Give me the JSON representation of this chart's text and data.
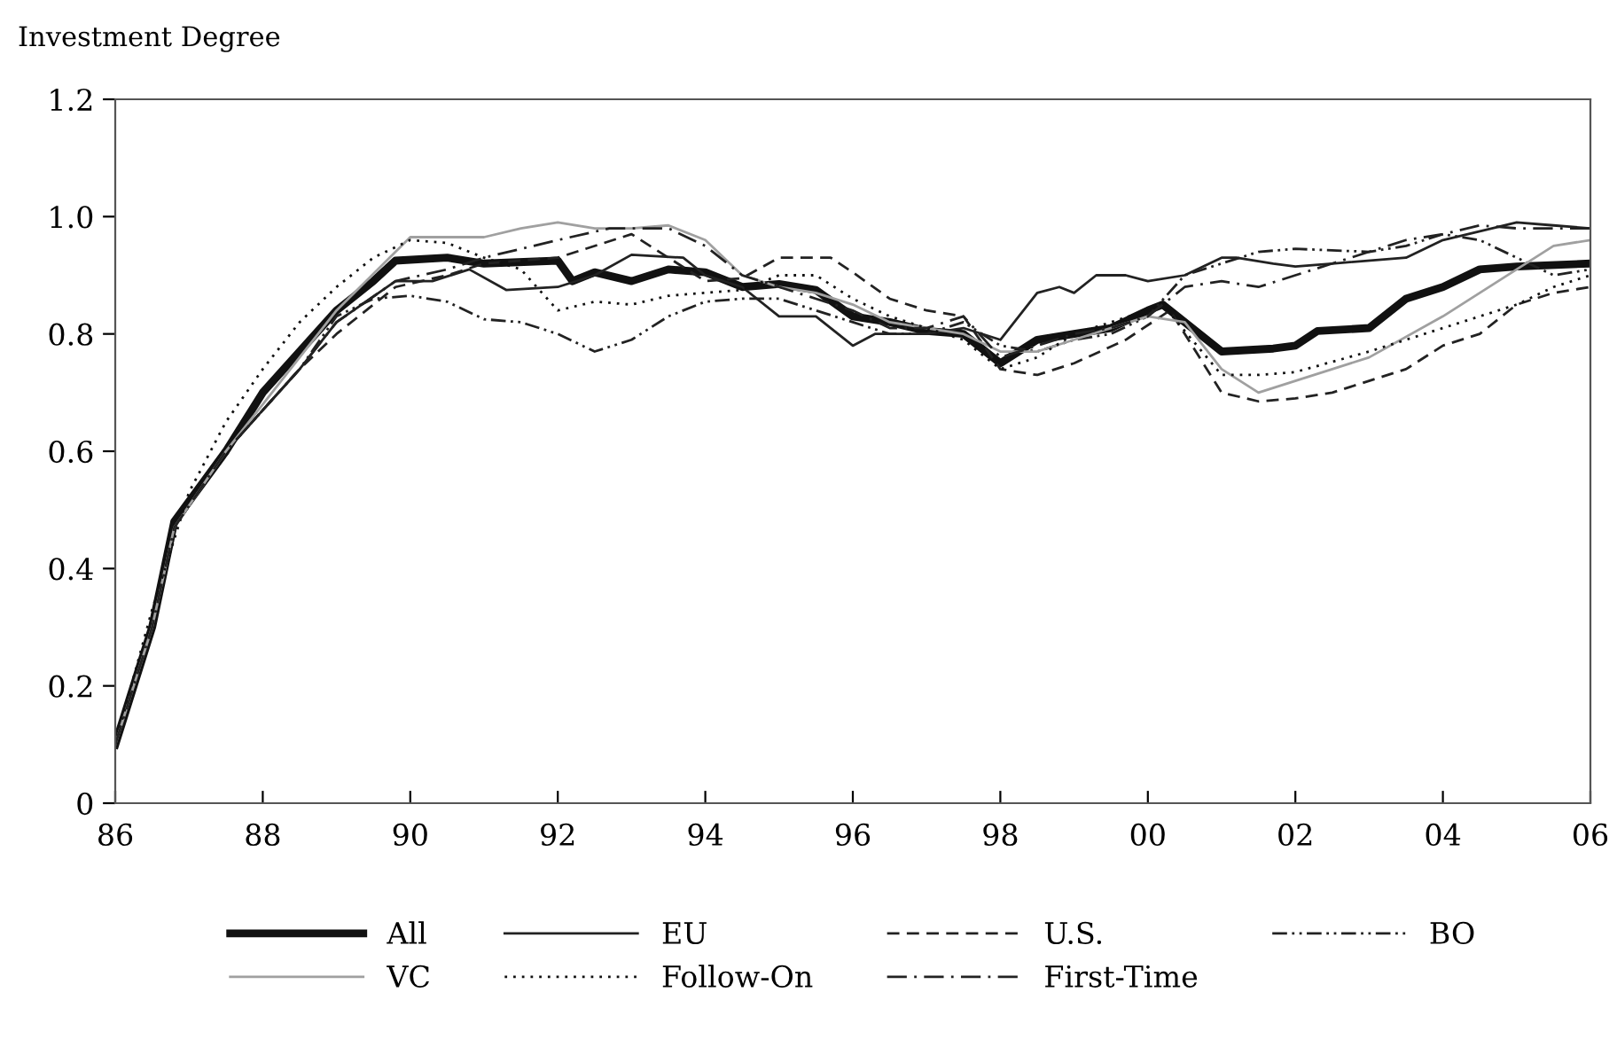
{
  "chart_data": {
    "type": "line",
    "ylabel": "Investment Degree",
    "xlim": [
      1986,
      2006
    ],
    "ylim": [
      0,
      1.2
    ],
    "xticks": [
      {
        "value": 1986,
        "label": "86"
      },
      {
        "value": 1988,
        "label": "88"
      },
      {
        "value": 1990,
        "label": "90"
      },
      {
        "value": 1992,
        "label": "92"
      },
      {
        "value": 1994,
        "label": "94"
      },
      {
        "value": 1996,
        "label": "96"
      },
      {
        "value": 1998,
        "label": "98"
      },
      {
        "value": 2000,
        "label": "00"
      },
      {
        "value": 2002,
        "label": "02"
      },
      {
        "value": 2004,
        "label": "04"
      },
      {
        "value": 2006,
        "label": "06"
      }
    ],
    "yticks": [
      0,
      0.2,
      0.4,
      0.6,
      0.8,
      {
        "value": 1,
        "label": "1.0"
      },
      1.2
    ],
    "grid": false,
    "legend": "bottom",
    "marker": "none",
    "series": [
      {
        "name": "All",
        "color": "#111111",
        "line_style": "solid",
        "x": [
          1986,
          1986.5,
          1986.8,
          1987.5,
          1988,
          1988.5,
          1989,
          1989.5,
          1989.8,
          1990.5,
          1991,
          1992,
          1992.2,
          1992.5,
          1993,
          1993.5,
          1994,
          1994.5,
          1995,
          1995.5,
          1996,
          1996.5,
          1997,
          1997.5,
          1998,
          1998.5,
          1999,
          1999.5,
          2000,
          2000.2,
          2001,
          2001.7,
          2002,
          2002.3,
          2003,
          2003.5,
          2004,
          2004.5,
          2005,
          2006
        ],
        "values": [
          0.1,
          0.3,
          0.48,
          0.6,
          0.7,
          0.77,
          0.84,
          0.89,
          0.925,
          0.93,
          0.92,
          0.925,
          0.89,
          0.905,
          0.89,
          0.91,
          0.905,
          0.88,
          0.885,
          0.875,
          0.83,
          0.82,
          0.805,
          0.8,
          0.75,
          0.79,
          0.8,
          0.81,
          0.84,
          0.85,
          0.77,
          0.775,
          0.78,
          0.805,
          0.81,
          0.86,
          0.88,
          0.91,
          0.915,
          0.92
        ]
      },
      {
        "name": "EU",
        "color": "#222222",
        "line_style": "solid",
        "x": [
          1986,
          1986.5,
          1986.8,
          1987.5,
          1988,
          1988.5,
          1989,
          1989.8,
          1990.3,
          1990.8,
          1991.3,
          1992,
          1992.5,
          1993,
          1993.7,
          1994,
          1994.5,
          1995,
          1995.5,
          1996,
          1996.3,
          1997,
          1997.5,
          1998,
          1998.5,
          1998.8,
          1999,
          1999.3,
          1999.7,
          2000,
          2000.5,
          2001,
          2001.2,
          2001.7,
          2002,
          2002.5,
          2003.5,
          2004,
          2005,
          2005.5,
          2006
        ],
        "values": [
          0.1,
          0.3,
          0.47,
          0.6,
          0.67,
          0.74,
          0.82,
          0.89,
          0.89,
          0.91,
          0.875,
          0.88,
          0.9,
          0.935,
          0.93,
          0.9,
          0.88,
          0.83,
          0.83,
          0.78,
          0.8,
          0.8,
          0.81,
          0.79,
          0.87,
          0.88,
          0.87,
          0.9,
          0.9,
          0.89,
          0.9,
          0.93,
          0.93,
          0.92,
          0.915,
          0.92,
          0.93,
          0.96,
          0.99,
          0.985,
          0.98
        ]
      },
      {
        "name": "U.S.",
        "color": "#222222",
        "line_style": "dashed",
        "x": [
          1986,
          1986.5,
          1986.8,
          1987.5,
          1988,
          1988.5,
          1989,
          1989.8,
          1990.5,
          1991,
          1992,
          1993,
          1994,
          1994.5,
          1995,
          1995.7,
          1996,
          1996.5,
          1997,
          1997.5,
          1998,
          1998.5,
          1999,
          1999.7,
          2000.3,
          2001,
          2001.5,
          2002,
          2002.5,
          2003,
          2003.5,
          2004,
          2004.5,
          2005,
          2005.5,
          2006
        ],
        "values": [
          0.1,
          0.3,
          0.47,
          0.6,
          0.67,
          0.74,
          0.8,
          0.88,
          0.9,
          0.92,
          0.93,
          0.97,
          0.89,
          0.895,
          0.93,
          0.93,
          0.905,
          0.86,
          0.84,
          0.83,
          0.74,
          0.73,
          0.75,
          0.79,
          0.84,
          0.7,
          0.685,
          0.69,
          0.7,
          0.72,
          0.74,
          0.78,
          0.8,
          0.85,
          0.87,
          0.88
        ]
      },
      {
        "name": "BO",
        "color": "#222222",
        "line_style": "dashdotdot",
        "x": [
          1986,
          1986.5,
          1986.8,
          1987.5,
          1988,
          1988.5,
          1989,
          1989.5,
          1990,
          1990.5,
          1991,
          1991.5,
          1992,
          1992.5,
          1993,
          1993.5,
          1994,
          1994.5,
          1995,
          1995.5,
          1996,
          1996.5,
          1997,
          1997.5,
          1998,
          1998.5,
          1999,
          1999.5,
          2000,
          2000.5,
          2001,
          2001.5,
          2002,
          2003,
          2003.5,
          2004,
          2004.5,
          2005,
          2005.5,
          2006
        ],
        "values": [
          0.1,
          0.3,
          0.47,
          0.6,
          0.67,
          0.74,
          0.83,
          0.86,
          0.865,
          0.855,
          0.825,
          0.82,
          0.8,
          0.77,
          0.79,
          0.83,
          0.855,
          0.86,
          0.86,
          0.84,
          0.82,
          0.8,
          0.8,
          0.82,
          0.78,
          0.77,
          0.79,
          0.8,
          0.83,
          0.9,
          0.92,
          0.94,
          0.945,
          0.94,
          0.95,
          0.97,
          0.96,
          0.93,
          0.9,
          0.91
        ]
      },
      {
        "name": "VC",
        "color": "#a0a0a0",
        "line_style": "solid",
        "x": [
          1986,
          1986.5,
          1986.8,
          1987.5,
          1988,
          1988.5,
          1989,
          1989.8,
          1990,
          1991,
          1991.5,
          1992,
          1992.5,
          1993,
          1993.5,
          1994,
          1994.5,
          1995,
          1995.5,
          1996,
          1996.5,
          1997,
          1997.5,
          1998,
          1998.5,
          1999,
          2000,
          2000.5,
          2001,
          2001.5,
          2002,
          2003,
          2004,
          2005,
          2005.5,
          2006
        ],
        "values": [
          0.1,
          0.3,
          0.47,
          0.6,
          0.68,
          0.76,
          0.84,
          0.94,
          0.965,
          0.965,
          0.98,
          0.99,
          0.98,
          0.98,
          0.985,
          0.96,
          0.9,
          0.88,
          0.87,
          0.85,
          0.82,
          0.81,
          0.8,
          0.77,
          0.77,
          0.79,
          0.83,
          0.82,
          0.74,
          0.7,
          0.72,
          0.76,
          0.83,
          0.91,
          0.95,
          0.96
        ]
      },
      {
        "name": "Follow-On",
        "color": "#111111",
        "line_style": "dotted",
        "x": [
          1986,
          1986.5,
          1987,
          1987.5,
          1988,
          1988.5,
          1989,
          1989.5,
          1990,
          1990.5,
          1991,
          1991.5,
          1992,
          1992.5,
          1993,
          1993.5,
          1994,
          1994.5,
          1995,
          1995.5,
          1996,
          1996.5,
          1997,
          1997.5,
          1998,
          1998.5,
          1999,
          1999.5,
          2000,
          2000.2,
          2001,
          2001.5,
          2002,
          2003,
          2004,
          2005,
          2005.5,
          2006
        ],
        "values": [
          0.1,
          0.33,
          0.53,
          0.65,
          0.74,
          0.82,
          0.88,
          0.93,
          0.96,
          0.955,
          0.93,
          0.91,
          0.84,
          0.855,
          0.85,
          0.865,
          0.87,
          0.875,
          0.9,
          0.9,
          0.86,
          0.83,
          0.81,
          0.79,
          0.74,
          0.76,
          0.8,
          0.82,
          0.84,
          0.85,
          0.73,
          0.73,
          0.735,
          0.77,
          0.81,
          0.85,
          0.88,
          0.9
        ]
      },
      {
        "name": "First-Time",
        "color": "#222222",
        "line_style": "dashdot",
        "x": [
          1986,
          1986.5,
          1986.8,
          1987.5,
          1988,
          1988.5,
          1989,
          1989.8,
          1990.5,
          1991,
          1992,
          1992.7,
          1993.5,
          1994,
          1994.5,
          1995,
          1995.5,
          1996,
          1996.5,
          1997,
          1997.5,
          1998,
          1998.5,
          1999,
          1999.5,
          2000,
          2000.5,
          2001,
          2001.5,
          2002,
          2002.5,
          2003,
          2003.5,
          2004,
          2004.5,
          2005,
          2006
        ],
        "values": [
          0.1,
          0.3,
          0.47,
          0.6,
          0.67,
          0.74,
          0.82,
          0.89,
          0.91,
          0.93,
          0.96,
          0.98,
          0.98,
          0.95,
          0.9,
          0.88,
          0.86,
          0.84,
          0.81,
          0.81,
          0.83,
          0.76,
          0.78,
          0.8,
          0.81,
          0.83,
          0.88,
          0.89,
          0.88,
          0.9,
          0.92,
          0.94,
          0.96,
          0.97,
          0.985,
          0.98,
          0.98
        ]
      }
    ]
  }
}
